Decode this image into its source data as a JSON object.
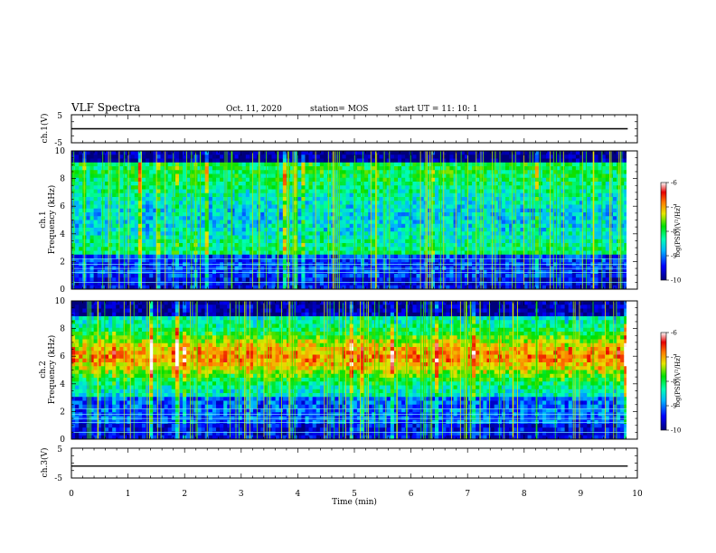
{
  "header": {
    "title": "VLF Spectra",
    "date": "Oct. 11, 2020",
    "station": "station= MOS",
    "start": "start  UT =   11: 10: 1"
  },
  "chart_data": {
    "type": "heatmap",
    "x": {
      "label": "Time  (min)",
      "range": [
        0,
        10
      ],
      "ticks": [
        0,
        1,
        2,
        3,
        4,
        5,
        6,
        7,
        8,
        9,
        10
      ],
      "data_end": 9.83
    },
    "panels": [
      {
        "id": "ch1-waveform",
        "kind": "waveform",
        "ylabel": "ch.1(V)",
        "yrange": [
          -5,
          5
        ],
        "ytick_labels": [
          "5",
          "-5"
        ],
        "trace_level": 0
      },
      {
        "id": "ch1-spectrogram",
        "kind": "spectrogram",
        "ylabel_line1": "ch.1",
        "ylabel_line2": "Frequency (kHz)",
        "yrange": [
          0,
          10
        ],
        "yticks": [
          0,
          2,
          4,
          6,
          8,
          10
        ],
        "colorbar": {
          "label": "log(PSD)(V²/Hz)",
          "range": [
            -10,
            -6
          ],
          "ticks": [
            -6,
            -7,
            -8,
            -9,
            -10
          ]
        }
      },
      {
        "id": "ch2-spectrogram",
        "kind": "spectrogram",
        "ylabel_line1": "ch.2",
        "ylabel_line2": "Frequency (kHz)",
        "yrange": [
          0,
          10
        ],
        "yticks": [
          0,
          2,
          4,
          6,
          8,
          10
        ],
        "colorbar": {
          "label": "log(PSD)(V²/Hz)",
          "range": [
            -10,
            -6
          ],
          "ticks": [
            -6,
            -7,
            -8,
            -9,
            -10
          ]
        }
      },
      {
        "id": "ch3-waveform",
        "kind": "waveform",
        "ylabel": "ch.3(V)",
        "yrange": [
          -5,
          5
        ],
        "ytick_labels": [
          "5",
          "-5"
        ],
        "trace_level": -1
      }
    ]
  }
}
